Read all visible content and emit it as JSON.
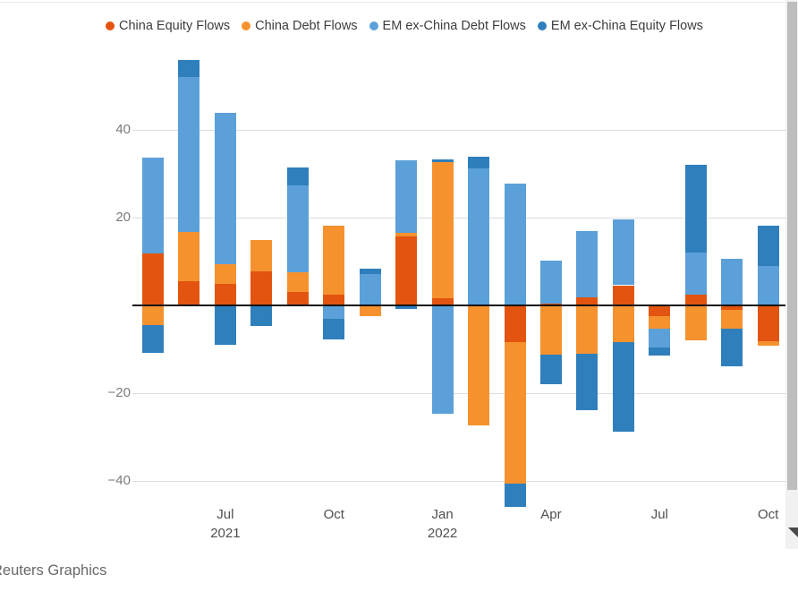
{
  "page": {
    "source_label": "Reuters Graphics"
  },
  "chart_data": {
    "type": "bar",
    "subtype": "stacked",
    "title": "",
    "xlabel": "",
    "ylabel": "",
    "ylim": [
      -46,
      58
    ],
    "grid": "horizontal",
    "legend_position": "top",
    "categories": [
      "May 2021",
      "Jun 2021",
      "Jul 2021",
      "Aug 2021",
      "Sep 2021",
      "Oct 2021",
      "Nov 2021",
      "Dec 2021",
      "Jan 2022",
      "Feb 2022",
      "Mar 2022",
      "Apr 2022",
      "May 2022",
      "Jun 2022",
      "Jul 2022",
      "Aug 2022",
      "Sep 2022",
      "Oct 2022"
    ],
    "series": [
      {
        "name": "China Equity Flows",
        "color": "#e2540f",
        "values": [
          11.8,
          5.5,
          5.0,
          7.8,
          3.0,
          2.4,
          0,
          15.8,
          1.7,
          0,
          -8.3,
          0.5,
          1.8,
          4.6,
          -2.5,
          2.5,
          -1.0,
          -8.1
        ]
      },
      {
        "name": "China Debt Flows",
        "color": "#f5922e",
        "values": [
          -4.4,
          11.3,
          4.4,
          7.2,
          4.6,
          15.7,
          -2.4,
          0.8,
          31.1,
          -27.5,
          -32.4,
          -11.3,
          -11.1,
          -8.3,
          -2.9,
          -7.9,
          -4.3,
          -1.1
        ]
      },
      {
        "name": "EM ex-China Debt Flows",
        "color": "#5ba0d8",
        "values": [
          21.9,
          35.3,
          34.6,
          0,
          19.8,
          -3.0,
          7.2,
          16.6,
          -24.8,
          31.2,
          27.8,
          9.7,
          15.1,
          15.0,
          -4.2,
          9.6,
          10.6,
          8.9
        ]
      },
      {
        "name": "EM ex-China Equity Flows",
        "color": "#2f7fbc",
        "values": [
          -6.4,
          3.9,
          -8.9,
          -4.8,
          4.0,
          -4.7,
          1.2,
          -0.9,
          0.5,
          2.7,
          -5.3,
          -6.6,
          -12.9,
          -20.6,
          -1.8,
          20.1,
          -8.6,
          9.4
        ]
      }
    ],
    "y_axis": {
      "ticks": [
        {
          "value": 40,
          "label": "40"
        },
        {
          "value": 20,
          "label": "20"
        },
        {
          "value": -20,
          "label": "−20"
        },
        {
          "value": -40,
          "label": "−40"
        }
      ]
    },
    "x_axis": {
      "ticks": [
        {
          "bar_index": 2,
          "label": "Jul",
          "sublabel": "2021"
        },
        {
          "bar_index": 5,
          "label": "Oct",
          "sublabel": ""
        },
        {
          "bar_index": 8,
          "label": "Jan",
          "sublabel": "2022"
        },
        {
          "bar_index": 11,
          "label": "Apr",
          "sublabel": ""
        },
        {
          "bar_index": 14,
          "label": "Jul",
          "sublabel": ""
        },
        {
          "bar_index": 17,
          "label": "Oct",
          "sublabel": ""
        }
      ]
    }
  }
}
